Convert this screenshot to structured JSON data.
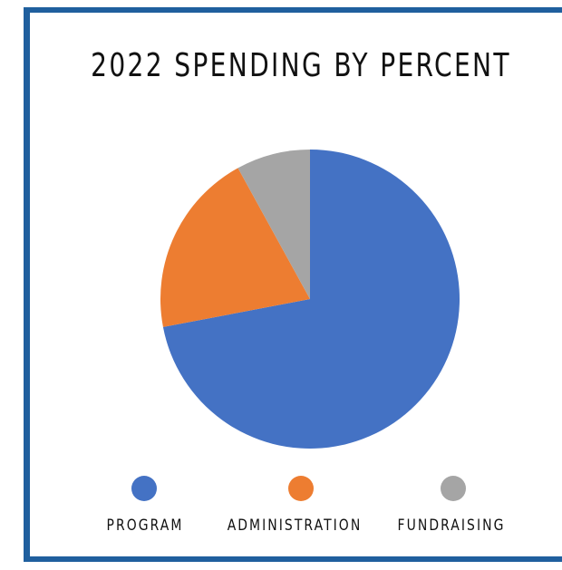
{
  "chart_data": {
    "type": "pie",
    "title": "2022 SPENDING BY PERCENT",
    "categories": [
      "PROGRAM",
      "ADMINISTRATION",
      "FUNDRAISING"
    ],
    "values": [
      72,
      20,
      8
    ],
    "colors": [
      "#4472c4",
      "#ed7d31",
      "#a5a5a5"
    ],
    "legend_position": "bottom"
  }
}
